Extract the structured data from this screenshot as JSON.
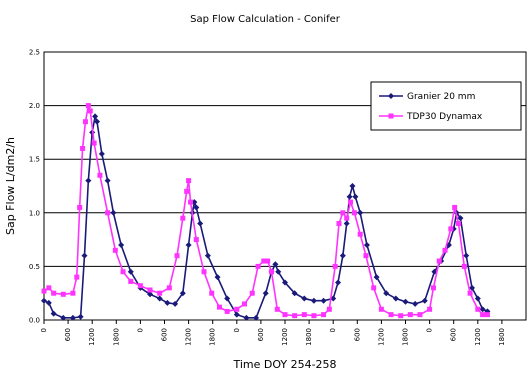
{
  "chart_data": {
    "type": "line",
    "title": "Sap Flow Calculation - Conifer",
    "xlabel": "Time     DOY 254-258",
    "ylabel": "Sap Flow  L/dm2/h",
    "ylim": [
      0,
      2.5
    ],
    "yticks": [
      {
        "value": 0,
        "label": "0.0"
      },
      {
        "value": 0.5,
        "label": "0.5"
      },
      {
        "value": 1.0,
        "label": "1.0"
      },
      {
        "value": 1.5,
        "label": "1.5"
      },
      {
        "value": 2.0,
        "label": "2.0"
      },
      {
        "value": 2.5,
        "label": "2.5"
      }
    ],
    "xlim": [
      0,
      5
    ],
    "xticks": [
      {
        "value": 0.0,
        "label": "0"
      },
      {
        "value": 0.25,
        "label": "600"
      },
      {
        "value": 0.5,
        "label": "1200"
      },
      {
        "value": 0.75,
        "label": "1800"
      },
      {
        "value": 1.0,
        "label": "0"
      },
      {
        "value": 1.25,
        "label": "600"
      },
      {
        "value": 1.5,
        "label": "1200"
      },
      {
        "value": 1.75,
        "label": "1800"
      },
      {
        "value": 2.0,
        "label": "0"
      },
      {
        "value": 2.25,
        "label": "600"
      },
      {
        "value": 2.5,
        "label": "1200"
      },
      {
        "value": 2.75,
        "label": "1800"
      },
      {
        "value": 3.0,
        "label": "0"
      },
      {
        "value": 3.25,
        "label": "600"
      },
      {
        "value": 3.5,
        "label": "1200"
      },
      {
        "value": 3.75,
        "label": "1800"
      },
      {
        "value": 4.0,
        "label": "0"
      },
      {
        "value": 4.25,
        "label": "600"
      },
      {
        "value": 4.5,
        "label": "1200"
      },
      {
        "value": 4.75,
        "label": "1800"
      }
    ],
    "grid": "horizontal",
    "legend_position": "top-right",
    "series": [
      {
        "name": "Granier 20 mm",
        "color": "#1a1a7a",
        "marker": "diamond",
        "points": [
          [
            0.0,
            0.18
          ],
          [
            0.05,
            0.16
          ],
          [
            0.1,
            0.06
          ],
          [
            0.2,
            0.02
          ],
          [
            0.3,
            0.02
          ],
          [
            0.38,
            0.03
          ],
          [
            0.42,
            0.6
          ],
          [
            0.46,
            1.3
          ],
          [
            0.5,
            1.75
          ],
          [
            0.53,
            1.9
          ],
          [
            0.55,
            1.85
          ],
          [
            0.6,
            1.55
          ],
          [
            0.66,
            1.3
          ],
          [
            0.72,
            1.0
          ],
          [
            0.8,
            0.7
          ],
          [
            0.9,
            0.45
          ],
          [
            1.0,
            0.3
          ],
          [
            1.1,
            0.24
          ],
          [
            1.2,
            0.2
          ],
          [
            1.28,
            0.16
          ],
          [
            1.36,
            0.15
          ],
          [
            1.44,
            0.25
          ],
          [
            1.5,
            0.7
          ],
          [
            1.54,
            1.0
          ],
          [
            1.56,
            1.1
          ],
          [
            1.58,
            1.05
          ],
          [
            1.62,
            0.9
          ],
          [
            1.7,
            0.6
          ],
          [
            1.8,
            0.4
          ],
          [
            1.9,
            0.2
          ],
          [
            2.0,
            0.05
          ],
          [
            2.1,
            0.02
          ],
          [
            2.2,
            0.02
          ],
          [
            2.3,
            0.25
          ],
          [
            2.36,
            0.45
          ],
          [
            2.4,
            0.52
          ],
          [
            2.43,
            0.45
          ],
          [
            2.5,
            0.35
          ],
          [
            2.6,
            0.25
          ],
          [
            2.7,
            0.2
          ],
          [
            2.8,
            0.18
          ],
          [
            2.9,
            0.18
          ],
          [
            3.0,
            0.2
          ],
          [
            3.05,
            0.35
          ],
          [
            3.1,
            0.6
          ],
          [
            3.14,
            0.9
          ],
          [
            3.17,
            1.15
          ],
          [
            3.2,
            1.25
          ],
          [
            3.23,
            1.15
          ],
          [
            3.28,
            1.0
          ],
          [
            3.35,
            0.7
          ],
          [
            3.45,
            0.4
          ],
          [
            3.55,
            0.25
          ],
          [
            3.65,
            0.2
          ],
          [
            3.75,
            0.17
          ],
          [
            3.85,
            0.15
          ],
          [
            3.95,
            0.18
          ],
          [
            4.05,
            0.45
          ],
          [
            4.12,
            0.55
          ],
          [
            4.2,
            0.7
          ],
          [
            4.25,
            0.85
          ],
          [
            4.28,
            1.0
          ],
          [
            4.32,
            0.95
          ],
          [
            4.38,
            0.6
          ],
          [
            4.44,
            0.3
          ],
          [
            4.5,
            0.2
          ],
          [
            4.55,
            0.1
          ],
          [
            4.6,
            0.08
          ]
        ]
      },
      {
        "name": "TDP30 Dynamax",
        "color": "#ff33ff",
        "marker": "square",
        "points": [
          [
            0.0,
            0.27
          ],
          [
            0.05,
            0.3
          ],
          [
            0.1,
            0.25
          ],
          [
            0.2,
            0.24
          ],
          [
            0.3,
            0.25
          ],
          [
            0.34,
            0.4
          ],
          [
            0.37,
            1.05
          ],
          [
            0.4,
            1.6
          ],
          [
            0.43,
            1.85
          ],
          [
            0.46,
            2.0
          ],
          [
            0.48,
            1.95
          ],
          [
            0.52,
            1.65
          ],
          [
            0.58,
            1.35
          ],
          [
            0.66,
            1.0
          ],
          [
            0.74,
            0.65
          ],
          [
            0.82,
            0.45
          ],
          [
            0.9,
            0.36
          ],
          [
            1.0,
            0.32
          ],
          [
            1.1,
            0.28
          ],
          [
            1.2,
            0.25
          ],
          [
            1.3,
            0.3
          ],
          [
            1.38,
            0.6
          ],
          [
            1.44,
            0.95
          ],
          [
            1.48,
            1.2
          ],
          [
            1.5,
            1.3
          ],
          [
            1.52,
            1.1
          ],
          [
            1.58,
            0.75
          ],
          [
            1.66,
            0.45
          ],
          [
            1.74,
            0.25
          ],
          [
            1.82,
            0.12
          ],
          [
            1.9,
            0.08
          ],
          [
            2.0,
            0.1
          ],
          [
            2.08,
            0.15
          ],
          [
            2.16,
            0.25
          ],
          [
            2.22,
            0.5
          ],
          [
            2.28,
            0.55
          ],
          [
            2.32,
            0.55
          ],
          [
            2.36,
            0.45
          ],
          [
            2.42,
            0.1
          ],
          [
            2.5,
            0.05
          ],
          [
            2.6,
            0.04
          ],
          [
            2.7,
            0.05
          ],
          [
            2.8,
            0.04
          ],
          [
            2.9,
            0.05
          ],
          [
            2.96,
            0.1
          ],
          [
            3.02,
            0.5
          ],
          [
            3.06,
            0.9
          ],
          [
            3.1,
            1.0
          ],
          [
            3.14,
            0.95
          ],
          [
            3.18,
            1.1
          ],
          [
            3.22,
            1.0
          ],
          [
            3.28,
            0.8
          ],
          [
            3.34,
            0.6
          ],
          [
            3.42,
            0.3
          ],
          [
            3.5,
            0.1
          ],
          [
            3.6,
            0.05
          ],
          [
            3.7,
            0.04
          ],
          [
            3.8,
            0.05
          ],
          [
            3.9,
            0.05
          ],
          [
            4.0,
            0.1
          ],
          [
            4.04,
            0.3
          ],
          [
            4.1,
            0.55
          ],
          [
            4.16,
            0.65
          ],
          [
            4.22,
            0.85
          ],
          [
            4.26,
            1.05
          ],
          [
            4.3,
            0.9
          ],
          [
            4.36,
            0.5
          ],
          [
            4.42,
            0.25
          ],
          [
            4.5,
            0.1
          ],
          [
            4.55,
            0.05
          ],
          [
            4.6,
            0.05
          ]
        ]
      }
    ]
  }
}
